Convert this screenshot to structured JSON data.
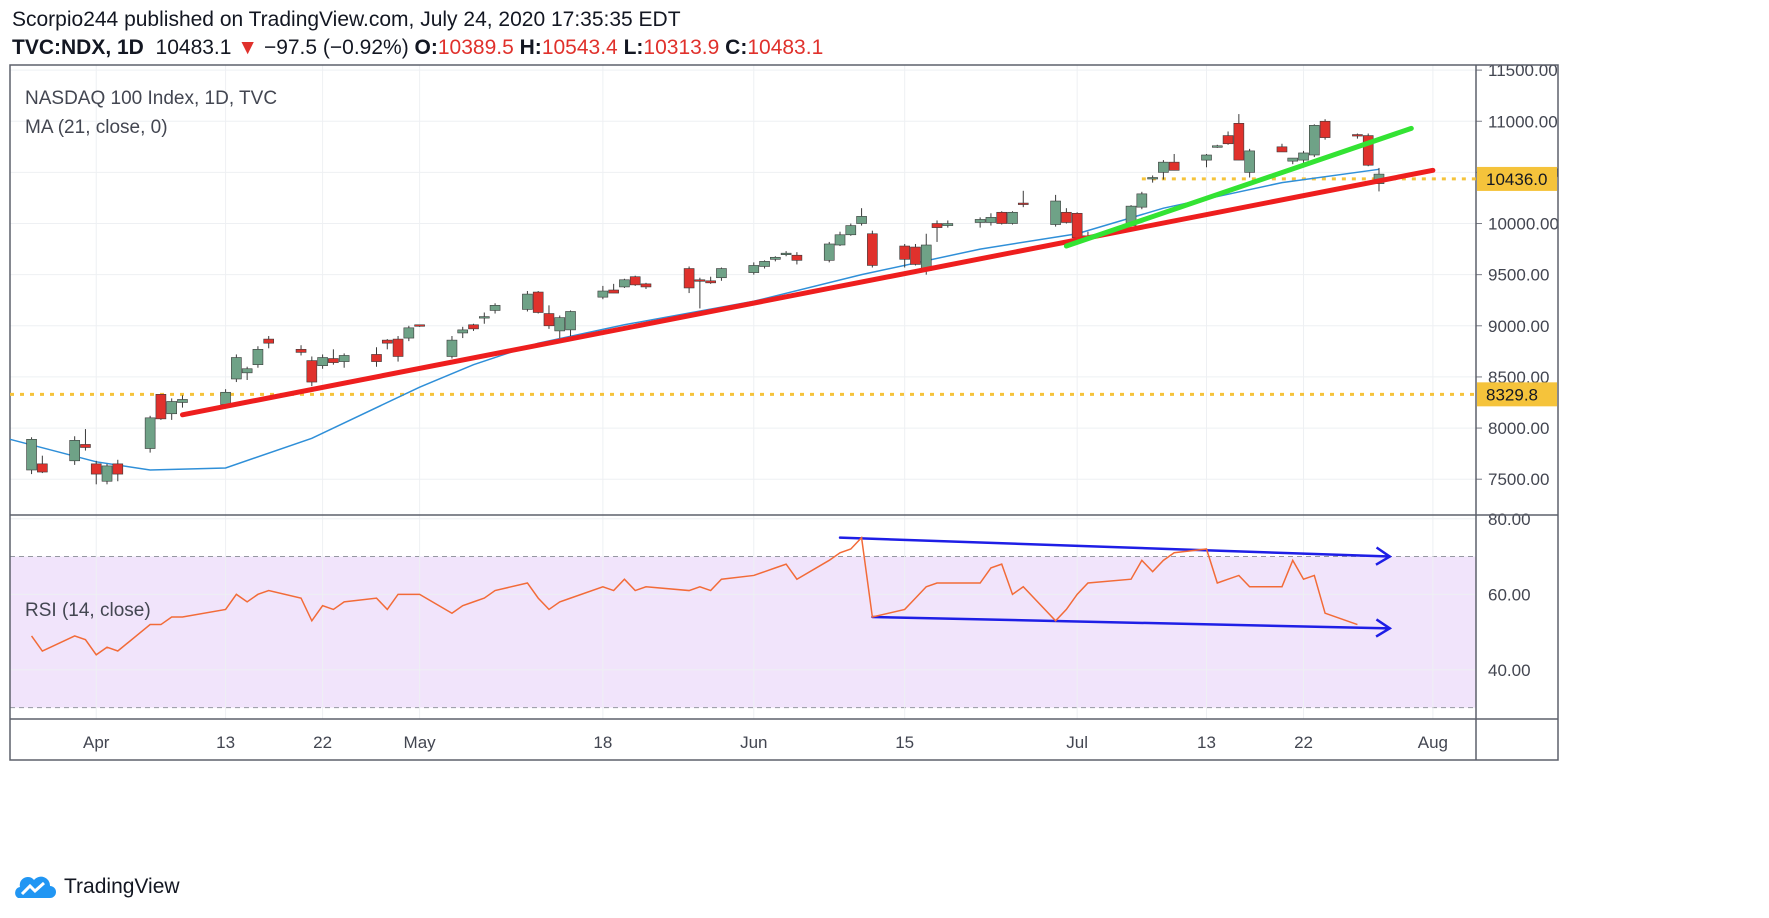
{
  "header": {
    "publish_line": "Scorpio244 published on TradingView.com, July 24, 2020 17:35:35 EDT",
    "symbol": "TVC:NDX, 1D",
    "last": "10483.1",
    "change_arrow": "▼",
    "change": "−97.5 (−0.92%)",
    "o_label": "O:",
    "o_value": "10389.5",
    "h_label": "H:",
    "h_value": "10543.4",
    "l_label": "L:",
    "l_value": "10313.9",
    "c_label": "C:",
    "c_value": "10483.1"
  },
  "legend": {
    "main": "NASDAQ 100 Index, 1D, TVC",
    "ma": "MA (21, close, 0)",
    "rsi": "RSI (14, close)"
  },
  "footer": {
    "brand": "TradingView"
  },
  "colors": {
    "up": "#6fa287",
    "down": "#e0312c",
    "ma": "#2f8fd8",
    "rsi": "#f26b38",
    "rsi_band": "#f1e4fb",
    "green_trend": "#33e333",
    "red_trend": "#ee1e1e",
    "channel": "#1e1ee6",
    "level": "#f5c33b",
    "grid": "#eef0f3"
  },
  "chart_data": {
    "type": "candlestick",
    "price_axis": {
      "ticks": [
        "11500.00",
        "11000.00",
        "10500.00",
        "10000.00",
        "9500.00",
        "9000.00",
        "8500.00",
        "8000.00",
        "7500.00"
      ],
      "ylim": [
        7150,
        11550
      ]
    },
    "rsi_axis": {
      "ticks": [
        "80.00",
        "60.00",
        "40.00"
      ],
      "ylim": [
        27,
        81
      ],
      "band": [
        30,
        70
      ]
    },
    "x_ticks": [
      "Apr",
      "13",
      "22",
      "May",
      "18",
      "Jun",
      "15",
      "Jul",
      "13",
      "22",
      "Aug"
    ],
    "price_labels": [
      "10436.0",
      "8329.8"
    ],
    "levels": [
      10436.0,
      8329.8
    ],
    "candles": [
      {
        "d": "2020-03-26",
        "o": 7590,
        "h": 7910,
        "l": 7550,
        "c": 7890
      },
      {
        "d": "2020-03-27",
        "o": 7650,
        "h": 7730,
        "l": 7560,
        "c": 7570
      },
      {
        "d": "2020-03-30",
        "o": 7680,
        "h": 7920,
        "l": 7640,
        "c": 7880
      },
      {
        "d": "2020-03-31",
        "o": 7840,
        "h": 7990,
        "l": 7780,
        "c": 7810
      },
      {
        "d": "2020-04-01",
        "o": 7650,
        "h": 7680,
        "l": 7450,
        "c": 7550
      },
      {
        "d": "2020-04-02",
        "o": 7480,
        "h": 7650,
        "l": 7450,
        "c": 7630
      },
      {
        "d": "2020-04-03",
        "o": 7650,
        "h": 7690,
        "l": 7480,
        "c": 7550
      },
      {
        "d": "2020-04-06",
        "o": 7800,
        "h": 8120,
        "l": 7760,
        "c": 8100
      },
      {
        "d": "2020-04-07",
        "o": 8330,
        "h": 8330,
        "l": 8080,
        "c": 8090
      },
      {
        "d": "2020-04-08",
        "o": 8140,
        "h": 8290,
        "l": 8080,
        "c": 8260
      },
      {
        "d": "2020-04-09",
        "o": 8250,
        "h": 8320,
        "l": 8200,
        "c": 8280
      },
      {
        "d": "2020-04-13",
        "o": 8230,
        "h": 8380,
        "l": 8200,
        "c": 8350
      },
      {
        "d": "2020-04-14",
        "o": 8480,
        "h": 8720,
        "l": 8450,
        "c": 8690
      },
      {
        "d": "2020-04-15",
        "o": 8540,
        "h": 8600,
        "l": 8470,
        "c": 8580
      },
      {
        "d": "2020-04-16",
        "o": 8620,
        "h": 8800,
        "l": 8590,
        "c": 8770
      },
      {
        "d": "2020-04-17",
        "o": 8870,
        "h": 8900,
        "l": 8780,
        "c": 8830
      },
      {
        "d": "2020-04-20",
        "o": 8770,
        "h": 8810,
        "l": 8710,
        "c": 8740
      },
      {
        "d": "2020-04-21",
        "o": 8660,
        "h": 8700,
        "l": 8410,
        "c": 8450
      },
      {
        "d": "2020-04-22",
        "o": 8610,
        "h": 8720,
        "l": 8580,
        "c": 8690
      },
      {
        "d": "2020-04-23",
        "o": 8680,
        "h": 8770,
        "l": 8620,
        "c": 8640
      },
      {
        "d": "2020-04-24",
        "o": 8650,
        "h": 8730,
        "l": 8590,
        "c": 8710
      },
      {
        "d": "2020-04-27",
        "o": 8720,
        "h": 8790,
        "l": 8600,
        "c": 8650
      },
      {
        "d": "2020-04-28",
        "o": 8860,
        "h": 8870,
        "l": 8770,
        "c": 8830
      },
      {
        "d": "2020-04-29",
        "o": 8870,
        "h": 8900,
        "l": 8650,
        "c": 8700
      },
      {
        "d": "2020-04-30",
        "o": 8880,
        "h": 9000,
        "l": 8850,
        "c": 8980
      },
      {
        "d": "2020-05-01",
        "o": 9010,
        "h": 9010,
        "l": 8990,
        "c": 9000
      },
      {
        "d": "2020-05-04",
        "o": 8700,
        "h": 8900,
        "l": 8680,
        "c": 8860
      },
      {
        "d": "2020-05-05",
        "o": 8930,
        "h": 8990,
        "l": 8880,
        "c": 8960
      },
      {
        "d": "2020-05-06",
        "o": 9010,
        "h": 9020,
        "l": 8950,
        "c": 8970
      },
      {
        "d": "2020-05-07",
        "o": 9080,
        "h": 9130,
        "l": 9020,
        "c": 9090
      },
      {
        "d": "2020-05-08",
        "o": 9150,
        "h": 9220,
        "l": 9120,
        "c": 9200
      },
      {
        "d": "2020-05-11",
        "o": 9160,
        "h": 9340,
        "l": 9140,
        "c": 9310
      },
      {
        "d": "2020-05-12",
        "o": 9330,
        "h": 9340,
        "l": 9120,
        "c": 9130
      },
      {
        "d": "2020-05-13",
        "o": 9120,
        "h": 9200,
        "l": 8970,
        "c": 9000
      },
      {
        "d": "2020-05-14",
        "o": 8950,
        "h": 9100,
        "l": 8880,
        "c": 9080
      },
      {
        "d": "2020-05-15",
        "o": 8960,
        "h": 9150,
        "l": 8900,
        "c": 9140
      },
      {
        "d": "2020-05-18",
        "o": 9280,
        "h": 9390,
        "l": 9260,
        "c": 9340
      },
      {
        "d": "2020-05-19",
        "o": 9350,
        "h": 9410,
        "l": 9320,
        "c": 9320
      },
      {
        "d": "2020-05-20",
        "o": 9380,
        "h": 9460,
        "l": 9370,
        "c": 9450
      },
      {
        "d": "2020-05-21",
        "o": 9480,
        "h": 9490,
        "l": 9390,
        "c": 9400
      },
      {
        "d": "2020-05-22",
        "o": 9410,
        "h": 9420,
        "l": 9360,
        "c": 9380
      },
      {
        "d": "2020-05-26",
        "o": 9560,
        "h": 9580,
        "l": 9320,
        "c": 9370
      },
      {
        "d": "2020-05-27",
        "o": 9450,
        "h": 9470,
        "l": 9170,
        "c": 9440
      },
      {
        "d": "2020-05-28",
        "o": 9440,
        "h": 9480,
        "l": 9410,
        "c": 9420
      },
      {
        "d": "2020-05-29",
        "o": 9470,
        "h": 9570,
        "l": 9440,
        "c": 9560
      },
      {
        "d": "2020-06-01",
        "o": 9520,
        "h": 9620,
        "l": 9500,
        "c": 9590
      },
      {
        "d": "2020-06-02",
        "o": 9580,
        "h": 9640,
        "l": 9560,
        "c": 9630
      },
      {
        "d": "2020-06-03",
        "o": 9650,
        "h": 9680,
        "l": 9630,
        "c": 9670
      },
      {
        "d": "2020-06-04",
        "o": 9700,
        "h": 9730,
        "l": 9680,
        "c": 9710
      },
      {
        "d": "2020-06-05",
        "o": 9690,
        "h": 9720,
        "l": 9600,
        "c": 9640
      },
      {
        "d": "2020-06-08",
        "o": 9640,
        "h": 9820,
        "l": 9620,
        "c": 9800
      },
      {
        "d": "2020-06-09",
        "o": 9790,
        "h": 9920,
        "l": 9780,
        "c": 9890
      },
      {
        "d": "2020-06-10",
        "o": 9890,
        "h": 10000,
        "l": 9880,
        "c": 9980
      },
      {
        "d": "2020-06-11",
        "o": 10000,
        "h": 10150,
        "l": 9980,
        "c": 10070
      },
      {
        "d": "2020-06-12",
        "o": 9900,
        "h": 9930,
        "l": 9570,
        "c": 9590
      },
      {
        "d": "2020-06-15",
        "o": 9780,
        "h": 9800,
        "l": 9570,
        "c": 9650
      },
      {
        "d": "2020-06-16",
        "o": 9770,
        "h": 9800,
        "l": 9590,
        "c": 9600
      },
      {
        "d": "2020-06-17",
        "o": 9540,
        "h": 9900,
        "l": 9500,
        "c": 9790
      },
      {
        "d": "2020-06-18",
        "o": 10000,
        "h": 10030,
        "l": 9820,
        "c": 9960
      },
      {
        "d": "2020-06-19",
        "o": 9980,
        "h": 10030,
        "l": 9960,
        "c": 10000
      },
      {
        "d": "2020-06-22",
        "o": 10010,
        "h": 10060,
        "l": 9960,
        "c": 10040
      },
      {
        "d": "2020-06-23",
        "o": 10010,
        "h": 10100,
        "l": 9980,
        "c": 10060
      },
      {
        "d": "2020-06-24",
        "o": 10110,
        "h": 10120,
        "l": 9990,
        "c": 10000
      },
      {
        "d": "2020-06-25",
        "o": 10000,
        "h": 10120,
        "l": 9990,
        "c": 10110
      },
      {
        "d": "2020-06-26",
        "o": 10200,
        "h": 10320,
        "l": 10160,
        "c": 10190
      },
      {
        "d": "2020-06-29",
        "o": 9990,
        "h": 10280,
        "l": 9970,
        "c": 10220
      },
      {
        "d": "2020-06-30",
        "o": 10110,
        "h": 10150,
        "l": 10000,
        "c": 10010
      },
      {
        "d": "2020-07-01",
        "o": 10100,
        "h": 10110,
        "l": 9830,
        "c": 9860
      },
      {
        "d": "2020-07-02",
        "o": 9860,
        "h": 9920,
        "l": 9830,
        "c": 9880
      },
      {
        "d": "2020-07-06",
        "o": 9980,
        "h": 10180,
        "l": 9970,
        "c": 10170
      },
      {
        "d": "2020-07-07",
        "o": 10160,
        "h": 10310,
        "l": 10140,
        "c": 10290
      },
      {
        "d": "2020-07-08",
        "o": 10450,
        "h": 10470,
        "l": 10400,
        "c": 10450
      },
      {
        "d": "2020-07-09",
        "o": 10500,
        "h": 10620,
        "l": 10430,
        "c": 10600
      },
      {
        "d": "2020-07-10",
        "o": 10600,
        "h": 10680,
        "l": 10520,
        "c": 10520
      },
      {
        "d": "2020-07-13",
        "o": 10620,
        "h": 10680,
        "l": 10550,
        "c": 10670
      },
      {
        "d": "2020-07-14",
        "o": 10760,
        "h": 10770,
        "l": 10740,
        "c": 10760
      },
      {
        "d": "2020-07-15",
        "o": 10860,
        "h": 10900,
        "l": 10770,
        "c": 10780
      },
      {
        "d": "2020-07-16",
        "o": 10980,
        "h": 11070,
        "l": 10620,
        "c": 10620
      },
      {
        "d": "2020-07-17",
        "o": 10500,
        "h": 10730,
        "l": 10450,
        "c": 10710
      },
      {
        "d": "2020-07-20",
        "o": 10750,
        "h": 10780,
        "l": 10700,
        "c": 10700
      },
      {
        "d": "2020-07-21",
        "o": 10610,
        "h": 10640,
        "l": 10580,
        "c": 10640
      },
      {
        "d": "2020-07-22",
        "o": 10620,
        "h": 10710,
        "l": 10590,
        "c": 10690
      },
      {
        "d": "2020-07-23",
        "o": 10670,
        "h": 10970,
        "l": 10650,
        "c": 10960
      },
      {
        "d": "2020-07-24",
        "o": 11000,
        "h": 11020,
        "l": 10820,
        "c": 10840
      },
      {
        "d": "2020-07-27",
        "o": 10870,
        "h": 10880,
        "l": 10830,
        "c": 10860
      },
      {
        "d": "2020-07-28",
        "o": 10860,
        "h": 10880,
        "l": 10560,
        "c": 10570
      },
      {
        "d": "2020-07-29",
        "o": 10389.5,
        "h": 10543.4,
        "l": 10313.9,
        "c": 10483.1
      }
    ],
    "ma": [
      {
        "d": "2020-03-24",
        "v": 7890
      },
      {
        "d": "2020-04-01",
        "v": 7670
      },
      {
        "d": "2020-04-06",
        "v": 7590
      },
      {
        "d": "2020-04-13",
        "v": 7610
      },
      {
        "d": "2020-04-21",
        "v": 7900
      },
      {
        "d": "2020-05-01",
        "v": 8400
      },
      {
        "d": "2020-05-06",
        "v": 8620
      },
      {
        "d": "2020-05-12",
        "v": 8830
      },
      {
        "d": "2020-05-20",
        "v": 9010
      },
      {
        "d": "2020-06-01",
        "v": 9240
      },
      {
        "d": "2020-06-11",
        "v": 9500
      },
      {
        "d": "2020-06-22",
        "v": 9750
      },
      {
        "d": "2020-07-01",
        "v": 9900
      },
      {
        "d": "2020-07-09",
        "v": 10150
      },
      {
        "d": "2020-07-20",
        "v": 10400
      },
      {
        "d": "2020-07-29",
        "v": 10530
      }
    ],
    "rsi": [
      {
        "d": "2020-03-26",
        "v": 49
      },
      {
        "d": "2020-03-27",
        "v": 45
      },
      {
        "d": "2020-03-30",
        "v": 49
      },
      {
        "d": "2020-03-31",
        "v": 48
      },
      {
        "d": "2020-04-01",
        "v": 44
      },
      {
        "d": "2020-04-02",
        "v": 46
      },
      {
        "d": "2020-04-03",
        "v": 45
      },
      {
        "d": "2020-04-06",
        "v": 52
      },
      {
        "d": "2020-04-07",
        "v": 52
      },
      {
        "d": "2020-04-08",
        "v": 54
      },
      {
        "d": "2020-04-09",
        "v": 54
      },
      {
        "d": "2020-04-13",
        "v": 56
      },
      {
        "d": "2020-04-14",
        "v": 60
      },
      {
        "d": "2020-04-15",
        "v": 58
      },
      {
        "d": "2020-04-16",
        "v": 60
      },
      {
        "d": "2020-04-17",
        "v": 61
      },
      {
        "d": "2020-04-20",
        "v": 59
      },
      {
        "d": "2020-04-21",
        "v": 53
      },
      {
        "d": "2020-04-22",
        "v": 57
      },
      {
        "d": "2020-04-23",
        "v": 56
      },
      {
        "d": "2020-04-24",
        "v": 58
      },
      {
        "d": "2020-04-27",
        "v": 59
      },
      {
        "d": "2020-04-28",
        "v": 56
      },
      {
        "d": "2020-04-29",
        "v": 60
      },
      {
        "d": "2020-04-30",
        "v": 60
      },
      {
        "d": "2020-05-01",
        "v": 60
      },
      {
        "d": "2020-05-04",
        "v": 55
      },
      {
        "d": "2020-05-05",
        "v": 57
      },
      {
        "d": "2020-05-06",
        "v": 58
      },
      {
        "d": "2020-05-07",
        "v": 59
      },
      {
        "d": "2020-05-08",
        "v": 61
      },
      {
        "d": "2020-05-11",
        "v": 63
      },
      {
        "d": "2020-05-12",
        "v": 59
      },
      {
        "d": "2020-05-13",
        "v": 56
      },
      {
        "d": "2020-05-14",
        "v": 58
      },
      {
        "d": "2020-05-15",
        "v": 59
      },
      {
        "d": "2020-05-18",
        "v": 62
      },
      {
        "d": "2020-05-19",
        "v": 61
      },
      {
        "d": "2020-05-20",
        "v": 64
      },
      {
        "d": "2020-05-21",
        "v": 61
      },
      {
        "d": "2020-05-22",
        "v": 62
      },
      {
        "d": "2020-05-26",
        "v": 61
      },
      {
        "d": "2020-05-27",
        "v": 62
      },
      {
        "d": "2020-05-28",
        "v": 61
      },
      {
        "d": "2020-05-29",
        "v": 64
      },
      {
        "d": "2020-06-01",
        "v": 65
      },
      {
        "d": "2020-06-02",
        "v": 66
      },
      {
        "d": "2020-06-03",
        "v": 67
      },
      {
        "d": "2020-06-04",
        "v": 68
      },
      {
        "d": "2020-06-05",
        "v": 64
      },
      {
        "d": "2020-06-08",
        "v": 69
      },
      {
        "d": "2020-06-09",
        "v": 71
      },
      {
        "d": "2020-06-10",
        "v": 72
      },
      {
        "d": "2020-06-11",
        "v": 75
      },
      {
        "d": "2020-06-12",
        "v": 54
      },
      {
        "d": "2020-06-15",
        "v": 56
      },
      {
        "d": "2020-06-16",
        "v": 59
      },
      {
        "d": "2020-06-17",
        "v": 62
      },
      {
        "d": "2020-06-18",
        "v": 63
      },
      {
        "d": "2020-06-19",
        "v": 63
      },
      {
        "d": "2020-06-22",
        "v": 63
      },
      {
        "d": "2020-06-23",
        "v": 67
      },
      {
        "d": "2020-06-24",
        "v": 68
      },
      {
        "d": "2020-06-25",
        "v": 60
      },
      {
        "d": "2020-06-26",
        "v": 62
      },
      {
        "d": "2020-06-29",
        "v": 53
      },
      {
        "d": "2020-06-30",
        "v": 56
      },
      {
        "d": "2020-07-01",
        "v": 60
      },
      {
        "d": "2020-07-02",
        "v": 63
      },
      {
        "d": "2020-07-06",
        "v": 64
      },
      {
        "d": "2020-07-07",
        "v": 69
      },
      {
        "d": "2020-07-08",
        "v": 66
      },
      {
        "d": "2020-07-09",
        "v": 69
      },
      {
        "d": "2020-07-10",
        "v": 71
      },
      {
        "d": "2020-07-13",
        "v": 72
      },
      {
        "d": "2020-07-14",
        "v": 63
      },
      {
        "d": "2020-07-15",
        "v": 64
      },
      {
        "d": "2020-07-16",
        "v": 65
      },
      {
        "d": "2020-07-17",
        "v": 62
      },
      {
        "d": "2020-07-20",
        "v": 62
      },
      {
        "d": "2020-07-21",
        "v": 69
      },
      {
        "d": "2020-07-22",
        "v": 64
      },
      {
        "d": "2020-07-23",
        "v": 65
      },
      {
        "d": "2020-07-24",
        "v": 55
      },
      {
        "d": "2020-07-27",
        "v": 52
      }
    ],
    "drawings": [
      {
        "name": "red-trendline",
        "pane": "price",
        "from": {
          "d": "2020-04-09",
          "v": 8130
        },
        "to": {
          "d": "2020-08-03",
          "v": 10520
        }
      },
      {
        "name": "green-trendline",
        "pane": "price",
        "from": {
          "d": "2020-06-30",
          "v": 9780
        },
        "to": {
          "d": "2020-08-01",
          "v": 10930
        }
      },
      {
        "name": "rsi-upper-channel",
        "pane": "rsi",
        "from": {
          "d": "2020-06-09",
          "v": 75
        },
        "to": {
          "d": "2020-07-30",
          "v": 70
        }
      },
      {
        "name": "rsi-lower-channel",
        "pane": "rsi",
        "from": {
          "d": "2020-06-12",
          "v": 54
        },
        "to": {
          "d": "2020-07-30",
          "v": 51
        }
      }
    ]
  }
}
